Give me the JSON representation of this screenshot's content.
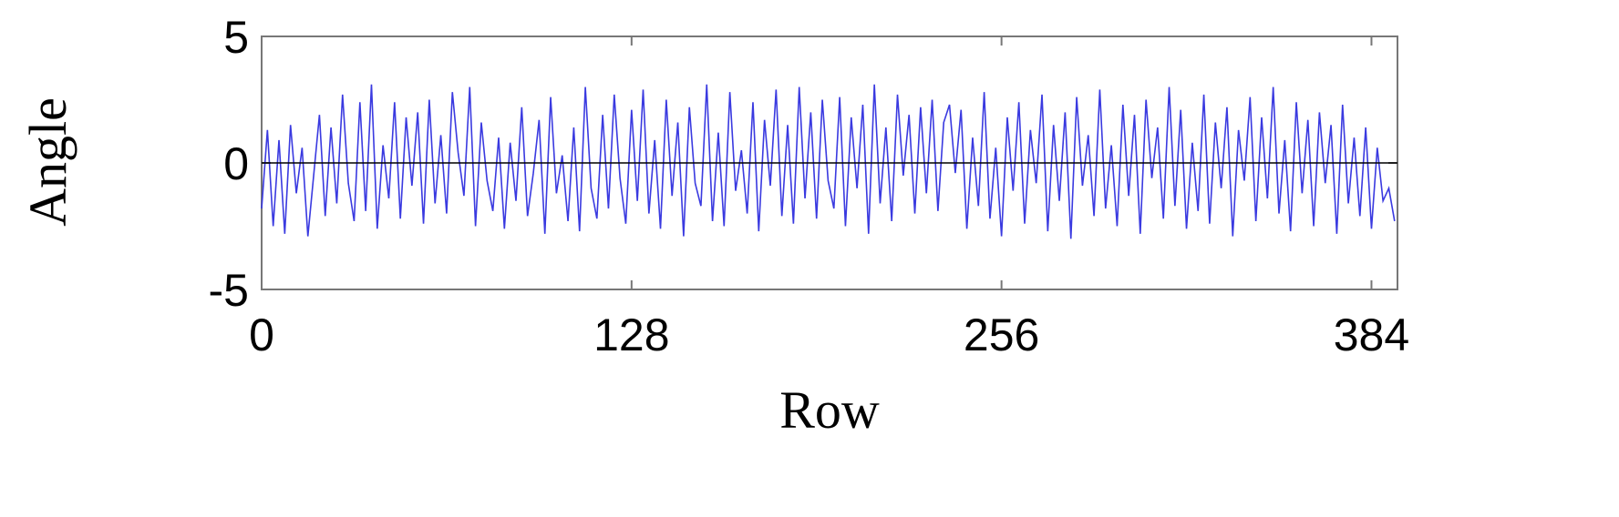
{
  "chart_data": {
    "type": "line",
    "x_label": "Row",
    "y_label": "Angle",
    "x": [
      0,
      2,
      4,
      6,
      8,
      10,
      12,
      14,
      16,
      18,
      20,
      22,
      24,
      26,
      28,
      30,
      32,
      34,
      36,
      38,
      40,
      42,
      44,
      46,
      48,
      50,
      52,
      54,
      56,
      58,
      60,
      62,
      64,
      66,
      68,
      70,
      72,
      74,
      76,
      78,
      80,
      82,
      84,
      86,
      88,
      90,
      92,
      94,
      96,
      98,
      100,
      102,
      104,
      106,
      108,
      110,
      112,
      114,
      116,
      118,
      120,
      122,
      124,
      126,
      128,
      130,
      132,
      134,
      136,
      138,
      140,
      142,
      144,
      146,
      148,
      150,
      152,
      154,
      156,
      158,
      160,
      162,
      164,
      166,
      168,
      170,
      172,
      174,
      176,
      178,
      180,
      182,
      184,
      186,
      188,
      190,
      192,
      194,
      196,
      198,
      200,
      202,
      204,
      206,
      208,
      210,
      212,
      214,
      216,
      218,
      220,
      222,
      224,
      226,
      228,
      230,
      232,
      234,
      236,
      238,
      240,
      242,
      244,
      246,
      248,
      250,
      252,
      254,
      256,
      258,
      260,
      262,
      264,
      266,
      268,
      270,
      272,
      274,
      276,
      278,
      280,
      282,
      284,
      286,
      288,
      290,
      292,
      294,
      296,
      298,
      300,
      302,
      304,
      306,
      308,
      310,
      312,
      314,
      316,
      318,
      320,
      322,
      324,
      326,
      328,
      330,
      332,
      334,
      336,
      338,
      340,
      342,
      344,
      346,
      348,
      350,
      352,
      354,
      356,
      358,
      360,
      362,
      364,
      366,
      368,
      370,
      372,
      374,
      376,
      378,
      380,
      382,
      384,
      386,
      388,
      390,
      392
    ],
    "series": [
      {
        "color": "#3a3ae0",
        "values": [
          -1.8,
          1.3,
          -2.5,
          0.9,
          -2.8,
          1.5,
          -1.2,
          0.6,
          -2.9,
          -0.5,
          1.9,
          -2.1,
          1.4,
          -1.6,
          2.7,
          -0.8,
          -2.3,
          2.4,
          -1.9,
          3.1,
          -2.6,
          0.7,
          -1.4,
          2.4,
          -2.2,
          1.8,
          -0.9,
          2.0,
          -2.4,
          2.5,
          -1.6,
          1.1,
          -2.0,
          2.8,
          0.4,
          -1.3,
          3.0,
          -2.5,
          1.6,
          -0.7,
          -1.9,
          1.0,
          -2.6,
          0.8,
          -1.5,
          2.2,
          -2.1,
          -0.4,
          1.7,
          -2.8,
          2.6,
          -1.2,
          0.3,
          -2.3,
          1.4,
          -2.7,
          3.0,
          -1.0,
          -2.2,
          1.9,
          -1.8,
          2.7,
          -0.6,
          -2.4,
          2.1,
          -1.5,
          2.9,
          -2.0,
          0.9,
          -2.6,
          2.5,
          -1.3,
          1.6,
          -2.9,
          2.2,
          -0.8,
          -1.7,
          3.1,
          -2.3,
          1.2,
          -2.5,
          2.8,
          -1.1,
          0.5,
          -2.0,
          2.4,
          -2.7,
          1.7,
          -0.9,
          2.9,
          -2.1,
          1.5,
          -2.4,
          3.0,
          -1.4,
          2.0,
          -2.2,
          2.5,
          -0.7,
          -1.8,
          2.6,
          -2.5,
          1.8,
          -1.0,
          2.3,
          -2.8,
          3.1,
          -1.6,
          1.4,
          -2.3,
          2.7,
          -0.5,
          1.9,
          -2.0,
          2.2,
          -1.2,
          2.5,
          -1.9,
          1.6,
          2.3,
          -0.4,
          2.1,
          -2.6,
          1.0,
          -1.7,
          2.8,
          -2.2,
          0.6,
          -2.9,
          1.8,
          -1.1,
          2.4,
          -2.4,
          1.3,
          -0.8,
          2.7,
          -2.7,
          1.5,
          -1.5,
          2.0,
          -3.0,
          2.6,
          -0.9,
          1.1,
          -2.1,
          2.9,
          -1.8,
          0.7,
          -2.5,
          2.3,
          -1.3,
          1.9,
          -2.8,
          2.5,
          -0.6,
          1.4,
          -2.2,
          3.0,
          -1.7,
          2.1,
          -2.6,
          0.8,
          -1.9,
          2.7,
          -2.4,
          1.6,
          -1.0,
          2.2,
          -2.9,
          1.3,
          -0.7,
          2.6,
          -2.3,
          1.8,
          -1.4,
          3.0,
          -2.0,
          0.9,
          -2.7,
          2.4,
          -1.2,
          1.7,
          -2.5,
          2.0,
          -0.8,
          1.5,
          -2.8,
          2.3,
          -1.6,
          1.0,
          -2.1,
          1.4,
          -2.6,
          0.6,
          -1.5,
          -1.0,
          -2.3
        ]
      }
    ],
    "xlim": [
      0,
      393
    ],
    "xticks": [
      0,
      128,
      256,
      384
    ],
    "ylim": [
      -5,
      5
    ],
    "yticks": [
      -5,
      0,
      5
    ],
    "reference_line": 0,
    "grid": false
  }
}
